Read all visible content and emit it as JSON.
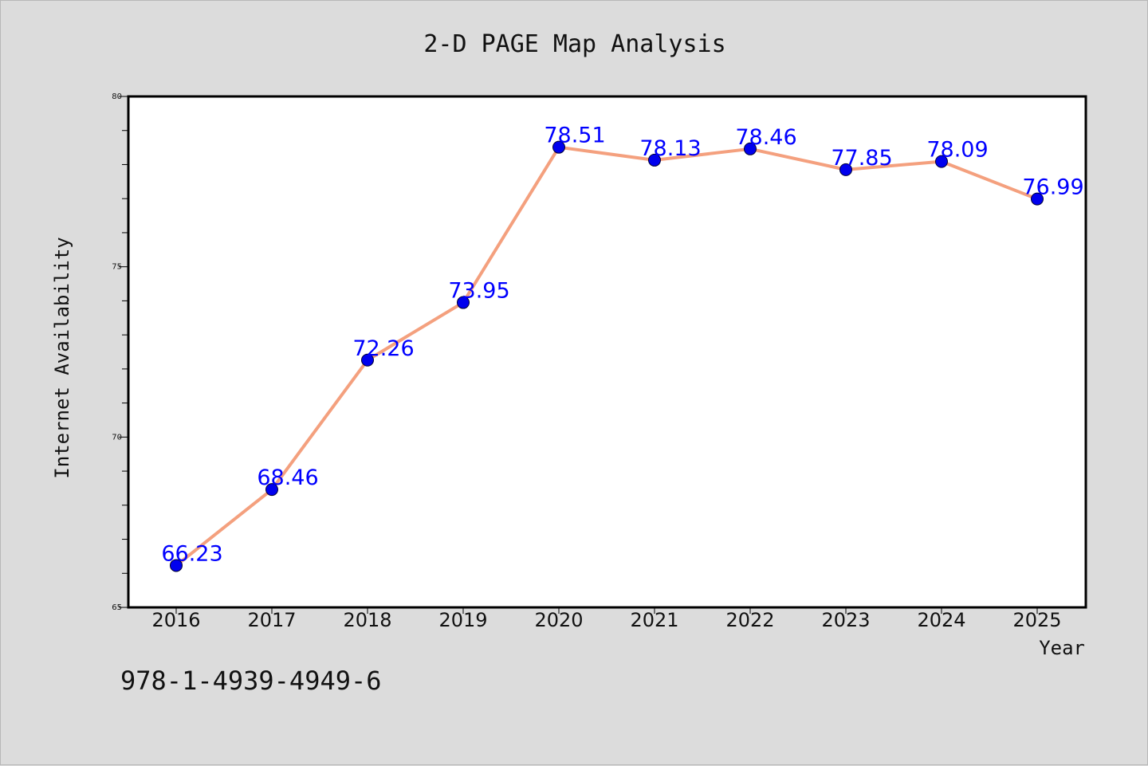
{
  "chart_data": {
    "type": "line",
    "title": "2-D PAGE Map Analysis",
    "xlabel": "Year",
    "ylabel": "Internet Availability",
    "categories": [
      "2016",
      "2017",
      "2018",
      "2019",
      "2020",
      "2021",
      "2022",
      "2023",
      "2024",
      "2025"
    ],
    "series": [
      {
        "values": [
          66.23,
          68.46,
          72.26,
          73.95,
          78.51,
          78.13,
          78.46,
          77.85,
          78.09,
          76.99
        ],
        "labels": [
          "66.23",
          "68.46",
          "72.26",
          "73.95",
          "78.51",
          "78.13",
          "78.46",
          "77.85",
          "78.09",
          "76.99"
        ],
        "line_color": "#f4a07e",
        "marker_color": "#0000ee"
      }
    ],
    "ylim": [
      65,
      80
    ],
    "yticks": [
      "65",
      "70",
      "75",
      "80"
    ],
    "grid": false,
    "legend": "none"
  },
  "footer": {
    "isbn": "978-1-4939-4949-6"
  }
}
